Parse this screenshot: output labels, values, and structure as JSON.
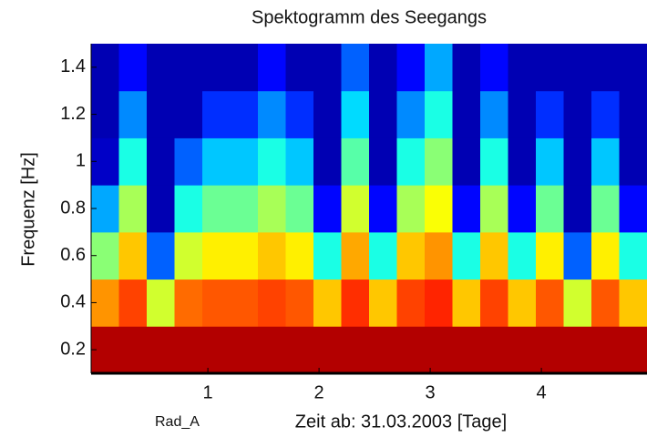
{
  "chart_data": {
    "type": "heatmap",
    "title": "Spektogramm des Seegangs",
    "x_label": "Zeit ab: 31.03.2003   [Tage]",
    "y_label": "Frequenz [Hz]",
    "annotation": "Rad_A",
    "colormap": "jet",
    "x": [
      0.075,
      0.325,
      0.575,
      0.825,
      1.075,
      1.325,
      1.575,
      1.825,
      2.075,
      2.325,
      2.575,
      2.825,
      3.075,
      3.325,
      3.575,
      3.825,
      4.075,
      4.325,
      4.575,
      4.825
    ],
    "y": [
      0.2,
      0.4,
      0.6,
      0.8,
      1.0,
      1.2,
      1.4
    ],
    "values": [
      [
        0.95,
        0.73,
        0.51,
        0.29,
        0.07,
        0.05,
        0.05
      ],
      [
        0.95,
        0.81,
        0.68,
        0.54,
        0.4,
        0.26,
        0.13
      ],
      [
        0.95,
        0.58,
        0.22,
        0.05,
        0.05,
        0.05,
        0.05
      ],
      [
        0.95,
        0.77,
        0.58,
        0.4,
        0.22,
        0.05,
        0.05
      ],
      [
        0.95,
        0.79,
        0.64,
        0.48,
        0.32,
        0.17,
        0.05
      ],
      [
        0.95,
        0.79,
        0.64,
        0.48,
        0.32,
        0.17,
        0.05
      ],
      [
        0.95,
        0.81,
        0.68,
        0.54,
        0.4,
        0.26,
        0.13
      ],
      [
        0.95,
        0.79,
        0.64,
        0.48,
        0.32,
        0.17,
        0.05
      ],
      [
        0.95,
        0.68,
        0.4,
        0.13,
        0.05,
        0.05,
        0.05
      ],
      [
        0.95,
        0.83,
        0.71,
        0.58,
        0.46,
        0.34,
        0.22
      ],
      [
        0.95,
        0.68,
        0.4,
        0.13,
        0.05,
        0.05,
        0.05
      ],
      [
        0.95,
        0.81,
        0.68,
        0.54,
        0.4,
        0.26,
        0.13
      ],
      [
        0.95,
        0.84,
        0.73,
        0.62,
        0.51,
        0.4,
        0.29
      ],
      [
        0.95,
        0.68,
        0.4,
        0.13,
        0.05,
        0.05,
        0.05
      ],
      [
        0.95,
        0.81,
        0.68,
        0.54,
        0.4,
        0.26,
        0.13
      ],
      [
        0.95,
        0.68,
        0.4,
        0.13,
        0.05,
        0.05,
        0.05
      ],
      [
        0.95,
        0.79,
        0.64,
        0.48,
        0.32,
        0.17,
        0.05
      ],
      [
        0.95,
        0.58,
        0.22,
        0.05,
        0.05,
        0.05,
        0.05
      ],
      [
        0.95,
        0.79,
        0.64,
        0.48,
        0.32,
        0.17,
        0.05
      ],
      [
        0.95,
        0.68,
        0.4,
        0.13,
        0.05,
        0.05,
        0.05
      ]
    ],
    "xlim": [
      -0.05,
      4.95
    ],
    "ylim": [
      0.1,
      1.5
    ],
    "xticks": [
      1,
      2,
      3,
      4
    ],
    "yticks": [
      0.2,
      0.4,
      0.6,
      0.8,
      1,
      1.2,
      1.4
    ]
  }
}
